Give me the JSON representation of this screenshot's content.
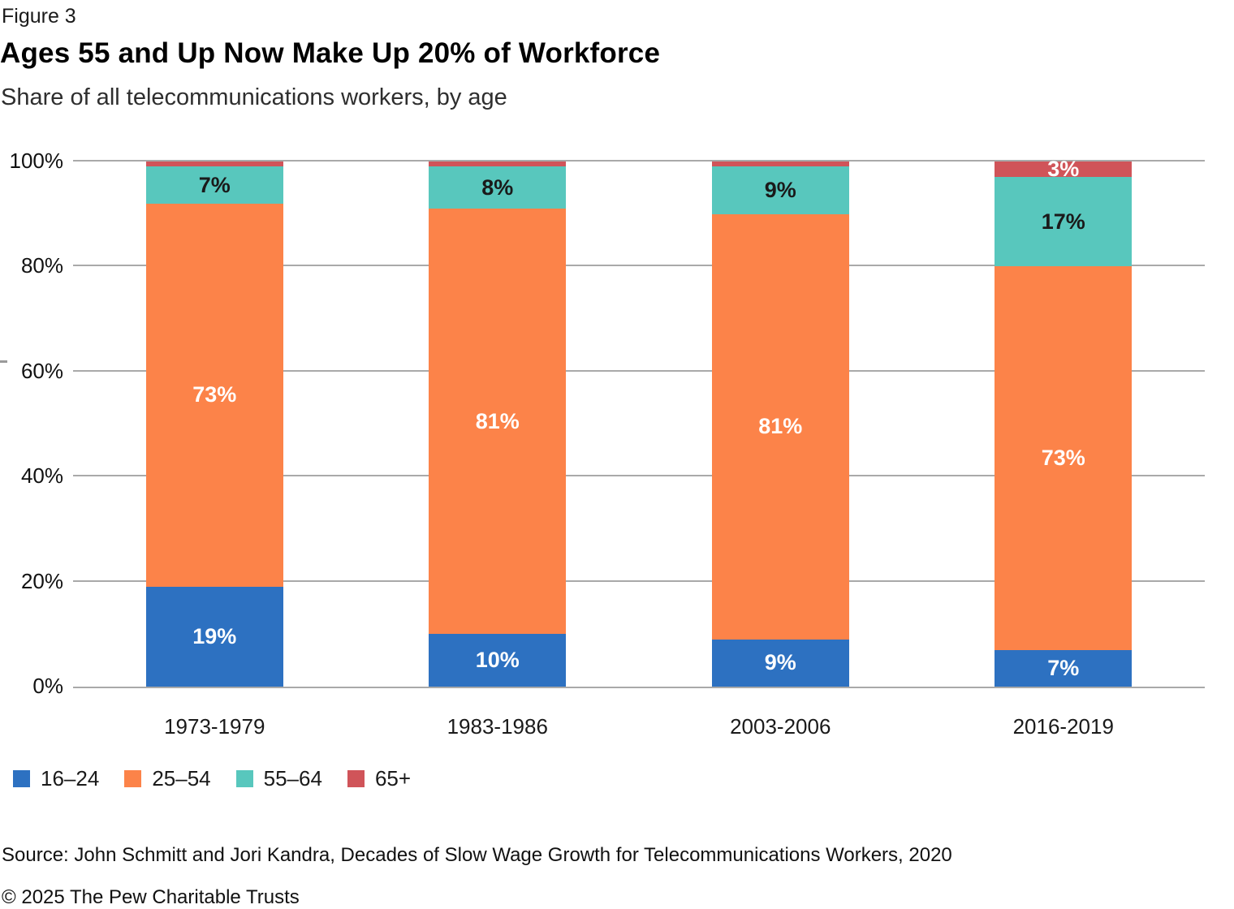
{
  "header": {
    "figure_label": "Figure 3",
    "title": "Ages 55 and Up Now Make Up 20% of Workforce",
    "subtitle": "Share of all telecommunications workers, by age"
  },
  "chart_data": {
    "type": "bar",
    "subtype": "stacked-100-percent",
    "categories": [
      "1973-1979",
      "1983-1986",
      "2003-2006",
      "2016-2019"
    ],
    "series": [
      {
        "name": "16–24",
        "color": "#2D71C1",
        "label_color": "#FFFFFF",
        "values": [
          19,
          10,
          9,
          7
        ],
        "labels": [
          "19%",
          "10%",
          "9%",
          "7%"
        ]
      },
      {
        "name": "25–54",
        "color": "#FC8349",
        "label_color": "#FFFFFF",
        "values": [
          73,
          81,
          81,
          73
        ],
        "labels": [
          "73%",
          "81%",
          "81%",
          "73%"
        ]
      },
      {
        "name": "55–64",
        "color": "#58C7BD",
        "label_color": "#1A1A1A",
        "values": [
          7,
          8,
          9,
          17
        ],
        "labels": [
          "7%",
          "8%",
          "9%",
          "17%"
        ]
      },
      {
        "name": "65+",
        "color": "#D05459",
        "label_color": "#FFFFFF",
        "values": [
          1,
          1,
          1,
          3
        ],
        "labels": [
          "",
          "",
          "",
          "3%"
        ]
      }
    ],
    "ylim": [
      0,
      100
    ],
    "yticks": [
      0,
      20,
      40,
      60,
      80,
      100
    ],
    "ytick_labels": [
      "0%",
      "20%",
      "40%",
      "60%",
      "80%",
      "100%"
    ],
    "grid": true,
    "legend_position": "bottom",
    "gridline_color": "#A9A9A9"
  },
  "footer": {
    "source": "Source: John Schmitt and Jori Kandra, Decades of Slow Wage Growth for Telecommunications Workers, 2020",
    "copyright": "© 2025 The Pew Charitable Trusts"
  }
}
